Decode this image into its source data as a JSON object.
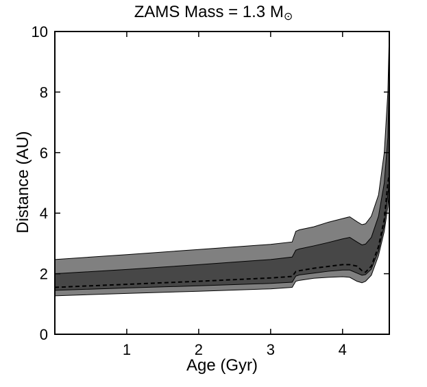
{
  "chart_data": {
    "type": "area",
    "title_main": "ZAMS Mass = 1.3 M",
    "title_sub": "⊙",
    "xlabel": "Age (Gyr)",
    "ylabel": "Distance (AU)",
    "xlim": [
      0,
      4.65
    ],
    "ylim": [
      0,
      10
    ],
    "xticks": [
      1,
      2,
      3,
      4
    ],
    "yticks": [
      0,
      2,
      4,
      6,
      8,
      10
    ],
    "grid": false,
    "colors": {
      "outer_band": "#808080",
      "inner_band": "#474747",
      "line": "#000000",
      "axes": "#000000"
    },
    "x": [
      0.0,
      1.0,
      2.0,
      3.0,
      3.3,
      3.35,
      3.4,
      3.6,
      3.8,
      4.0,
      4.1,
      4.2,
      4.27,
      4.32,
      4.4,
      4.5,
      4.58,
      4.63,
      4.65
    ],
    "series": [
      {
        "role": "outer_upper",
        "values": [
          2.47,
          2.63,
          2.8,
          2.97,
          3.05,
          3.4,
          3.45,
          3.55,
          3.7,
          3.82,
          3.88,
          3.72,
          3.62,
          3.65,
          3.9,
          4.6,
          6.0,
          8.0,
          10.0
        ]
      },
      {
        "role": "inner_upper",
        "values": [
          2.0,
          2.14,
          2.3,
          2.47,
          2.55,
          2.78,
          2.82,
          2.92,
          3.03,
          3.15,
          3.2,
          3.05,
          2.95,
          2.98,
          3.2,
          3.9,
          5.0,
          6.5,
          8.8
        ]
      },
      {
        "role": "median_dashed",
        "values": [
          1.55,
          1.65,
          1.75,
          1.86,
          1.91,
          2.07,
          2.1,
          2.18,
          2.24,
          2.3,
          2.3,
          2.25,
          2.1,
          2.05,
          2.25,
          2.9,
          3.8,
          5.0,
          5.3
        ]
      },
      {
        "role": "inner_lower",
        "values": [
          1.45,
          1.53,
          1.6,
          1.68,
          1.72,
          1.92,
          1.96,
          2.02,
          2.08,
          2.12,
          2.12,
          2.02,
          1.95,
          1.97,
          2.15,
          2.75,
          3.6,
          4.6,
          5.0
        ]
      },
      {
        "role": "outer_lower",
        "values": [
          1.27,
          1.35,
          1.42,
          1.5,
          1.55,
          1.75,
          1.78,
          1.85,
          1.88,
          1.9,
          1.88,
          1.75,
          1.7,
          1.75,
          1.95,
          2.6,
          3.4,
          4.2,
          4.8
        ]
      }
    ]
  }
}
